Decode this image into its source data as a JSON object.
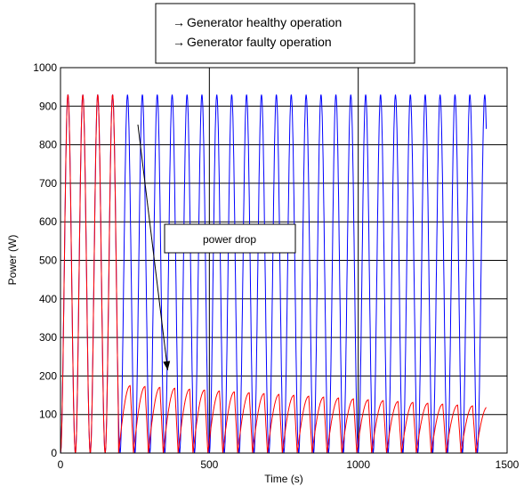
{
  "chart_data": {
    "type": "line",
    "xlabel": "Time (s)",
    "ylabel": "Power (W)",
    "xlim": [
      0,
      1500
    ],
    "ylim": [
      0,
      1000
    ],
    "xticks": [
      0,
      500,
      1000,
      1500
    ],
    "yticks": [
      0,
      100,
      200,
      300,
      400,
      500,
      600,
      700,
      800,
      900,
      1000
    ],
    "grid": "horizontal",
    "legend_position": "top-center",
    "series": [
      {
        "name": "Generator healthy operation",
        "color": "#0000ff",
        "marker_glyph": "→",
        "pattern": "periodic pulses",
        "x_start": 0,
        "x_end": 1430,
        "period_s": 50,
        "peak": 930,
        "min": 0
      },
      {
        "name": "Generator faulty operation",
        "color": "#ff0000",
        "marker_glyph": "→",
        "pattern": "periodic pulses, full power until fault then sawtooth at reduced power",
        "x_start": 0,
        "x_end": 1430,
        "period_s": 50,
        "peak_before_fault": 930,
        "fault_time": 195,
        "peak_after_fault_start": 175,
        "peak_after_fault_end": 120,
        "min": 0
      }
    ],
    "reference_lines_x": [
      500,
      1000
    ],
    "annotation": {
      "text": "power drop",
      "arrow_target": [
        360,
        215
      ]
    }
  }
}
